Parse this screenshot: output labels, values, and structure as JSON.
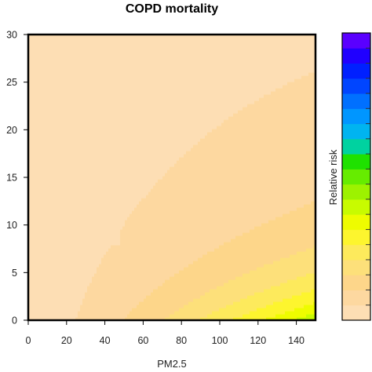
{
  "chart_data": {
    "type": "heatmap",
    "subtype": "filled-contour",
    "title": "COPD mortality",
    "xlabel": "PM2.5",
    "ylabel": "",
    "legend_label": "Relative risk",
    "legend_placement": "right",
    "grid": false,
    "xlim": [
      0,
      150
    ],
    "ylim": [
      0,
      30
    ],
    "x_ticks": [
      "0",
      "20",
      "40",
      "60",
      "80",
      "100",
      "120",
      "140"
    ],
    "y_ticks": [
      "0",
      "5",
      "10",
      "15",
      "20",
      "25",
      "30"
    ],
    "x_tick_values": [
      0,
      20,
      40,
      60,
      80,
      100,
      120,
      140
    ],
    "y_tick_values": [
      0,
      5,
      10,
      15,
      20,
      25,
      30
    ],
    "color_levels": [
      "#fddeb4",
      "#fdd8a0",
      "#fdd68a",
      "#fde07a",
      "#fdea5c",
      "#fdf52e",
      "#eefc00",
      "#c8fb00",
      "#9df200",
      "#66ec00",
      "#1fe100",
      "#00d2a0",
      "#00b4f0",
      "#0096ff",
      "#0070ff",
      "#0045ff",
      "#0020ff",
      "#2000ff",
      "#5a00ff"
    ],
    "observed_pattern": "Relative risk is lowest at low PM2.5 (pale peach band) and rises toward high PM2.5 combined with low values on the vertical axis (yellow, green, then blue near x=150, y=0)."
  }
}
